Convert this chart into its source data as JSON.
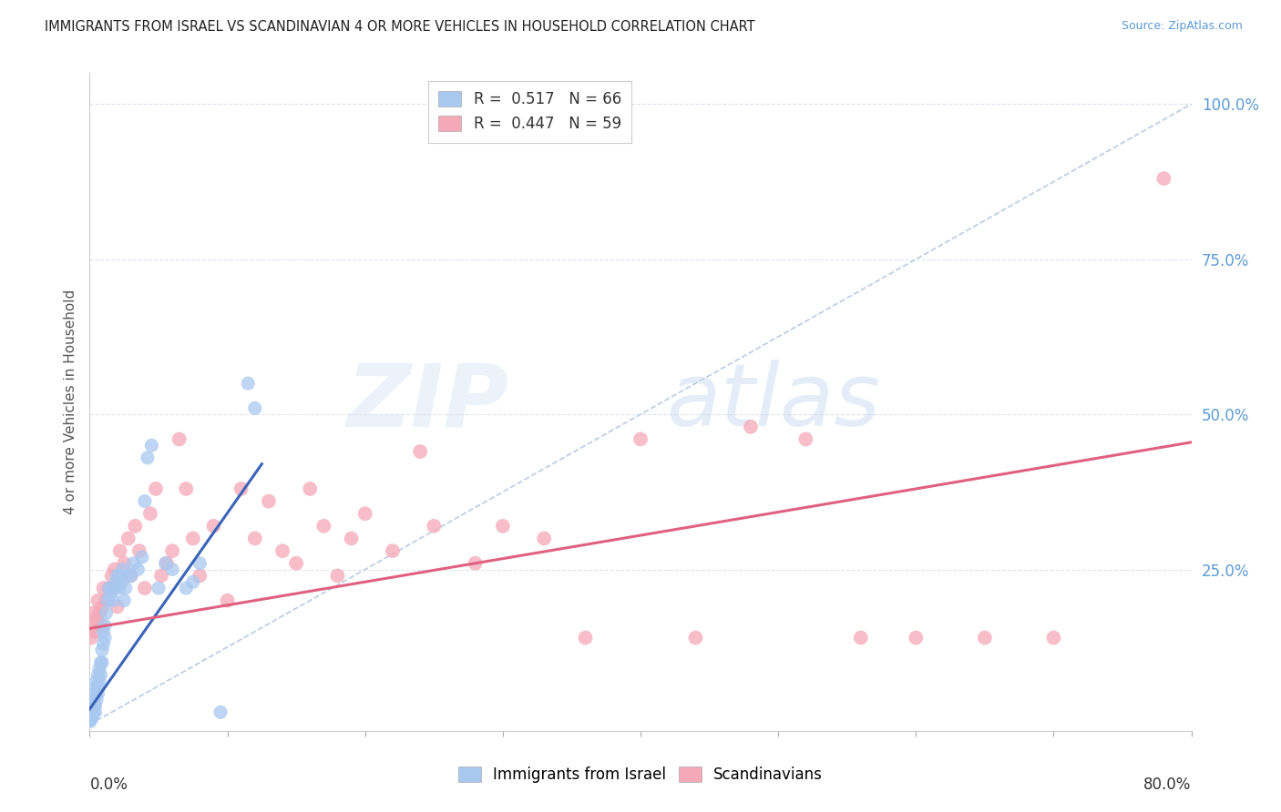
{
  "title": "IMMIGRANTS FROM ISRAEL VS SCANDINAVIAN 4 OR MORE VEHICLES IN HOUSEHOLD CORRELATION CHART",
  "source": "Source: ZipAtlas.com",
  "ylabel": "4 or more Vehicles in Household",
  "xlim": [
    0.0,
    0.8
  ],
  "ylim": [
    -0.01,
    1.05
  ],
  "R_israel": 0.517,
  "N_israel": 66,
  "R_scand": 0.447,
  "N_scand": 59,
  "color_israel": "#a8c8f0",
  "color_scand": "#f5a8b8",
  "line_israel": "#3a64b8",
  "line_scand": "#e06080",
  "diagonal_color": "#b8cce4",
  "background": "#ffffff",
  "grid_color": "#dde3ee",
  "israel_x": [
    0.0003,
    0.0005,
    0.0007,
    0.001,
    0.001,
    0.0012,
    0.0015,
    0.0015,
    0.002,
    0.002,
    0.002,
    0.0025,
    0.003,
    0.003,
    0.003,
    0.004,
    0.004,
    0.004,
    0.005,
    0.005,
    0.005,
    0.006,
    0.006,
    0.006,
    0.007,
    0.007,
    0.008,
    0.008,
    0.009,
    0.009,
    0.01,
    0.01,
    0.011,
    0.011,
    0.012,
    0.013,
    0.014,
    0.015,
    0.016,
    0.017,
    0.018,
    0.019,
    0.02,
    0.021,
    0.022,
    0.023,
    0.024,
    0.025,
    0.026,
    0.028,
    0.03,
    0.032,
    0.035,
    0.038,
    0.04,
    0.042,
    0.045,
    0.05,
    0.055,
    0.06,
    0.07,
    0.075,
    0.08,
    0.095,
    0.115,
    0.12
  ],
  "israel_y": [
    0.005,
    0.008,
    0.01,
    0.015,
    0.02,
    0.01,
    0.02,
    0.03,
    0.015,
    0.02,
    0.03,
    0.025,
    0.02,
    0.03,
    0.04,
    0.02,
    0.03,
    0.05,
    0.04,
    0.06,
    0.07,
    0.05,
    0.08,
    0.06,
    0.09,
    0.07,
    0.1,
    0.08,
    0.12,
    0.1,
    0.15,
    0.13,
    0.16,
    0.14,
    0.18,
    0.2,
    0.22,
    0.21,
    0.22,
    0.2,
    0.22,
    0.23,
    0.24,
    0.22,
    0.24,
    0.23,
    0.25,
    0.2,
    0.22,
    0.24,
    0.24,
    0.26,
    0.25,
    0.27,
    0.36,
    0.43,
    0.45,
    0.22,
    0.26,
    0.25,
    0.22,
    0.23,
    0.26,
    0.02,
    0.55,
    0.51
  ],
  "scand_x": [
    0.001,
    0.002,
    0.003,
    0.004,
    0.005,
    0.006,
    0.007,
    0.008,
    0.009,
    0.01,
    0.012,
    0.014,
    0.016,
    0.018,
    0.02,
    0.022,
    0.025,
    0.028,
    0.03,
    0.033,
    0.036,
    0.04,
    0.044,
    0.048,
    0.052,
    0.056,
    0.06,
    0.065,
    0.07,
    0.075,
    0.08,
    0.09,
    0.1,
    0.11,
    0.12,
    0.13,
    0.14,
    0.15,
    0.16,
    0.17,
    0.18,
    0.19,
    0.2,
    0.22,
    0.24,
    0.25,
    0.28,
    0.3,
    0.33,
    0.36,
    0.4,
    0.44,
    0.48,
    0.52,
    0.56,
    0.6,
    0.65,
    0.7,
    0.78
  ],
  "scand_y": [
    0.14,
    0.16,
    0.18,
    0.15,
    0.17,
    0.2,
    0.18,
    0.16,
    0.19,
    0.22,
    0.2,
    0.22,
    0.24,
    0.25,
    0.19,
    0.28,
    0.26,
    0.3,
    0.24,
    0.32,
    0.28,
    0.22,
    0.34,
    0.38,
    0.24,
    0.26,
    0.28,
    0.46,
    0.38,
    0.3,
    0.24,
    0.32,
    0.2,
    0.38,
    0.3,
    0.36,
    0.28,
    0.26,
    0.38,
    0.32,
    0.24,
    0.3,
    0.34,
    0.28,
    0.44,
    0.32,
    0.26,
    0.32,
    0.3,
    0.14,
    0.46,
    0.14,
    0.48,
    0.46,
    0.14,
    0.14,
    0.14,
    0.14,
    0.88
  ],
  "israel_line_x0": 0.0,
  "israel_line_x1": 0.125,
  "israel_line_y0": 0.025,
  "israel_line_y1": 0.42,
  "scand_line_x0": 0.0,
  "scand_line_x1": 0.8,
  "scand_line_y0": 0.155,
  "scand_line_y1": 0.455
}
